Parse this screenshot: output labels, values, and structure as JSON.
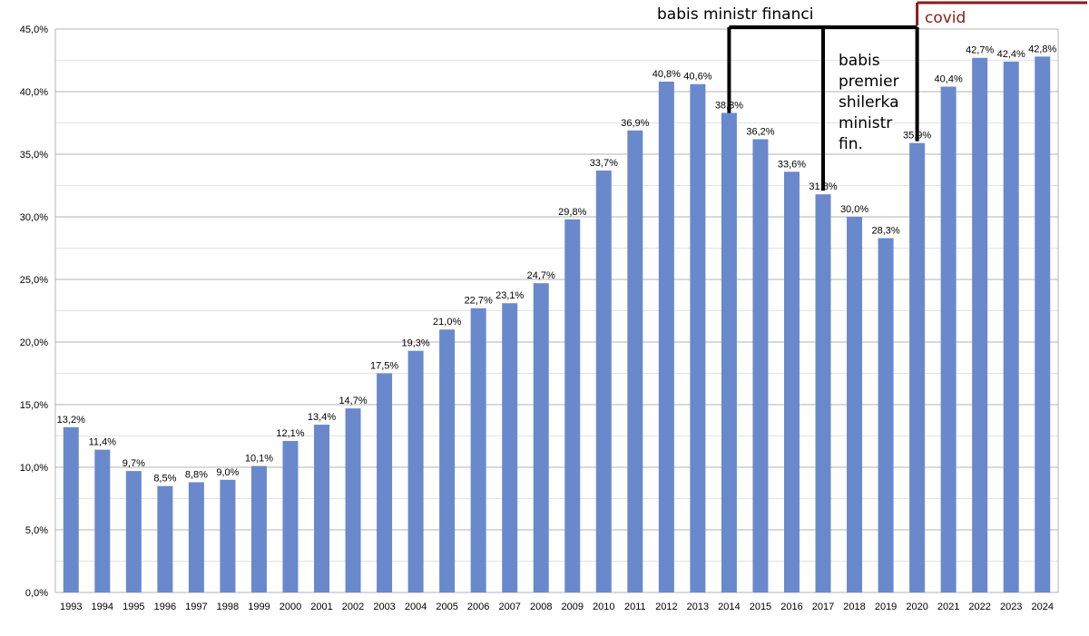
{
  "chart_data": {
    "type": "bar",
    "title": "",
    "xlabel": "",
    "ylabel": "",
    "ylim": [
      0,
      45
    ],
    "grid": true,
    "categories": [
      "1993",
      "1994",
      "1995",
      "1996",
      "1997",
      "1998",
      "1999",
      "2000",
      "2001",
      "2002",
      "2003",
      "2004",
      "2005",
      "2006",
      "2007",
      "2008",
      "2009",
      "2010",
      "2011",
      "2012",
      "2013",
      "2014",
      "2015",
      "2016",
      "2017",
      "2018",
      "2019",
      "2020",
      "2021",
      "2022",
      "2023",
      "2024"
    ],
    "values": [
      13.2,
      11.4,
      9.7,
      8.5,
      8.8,
      9.0,
      10.1,
      12.1,
      13.4,
      14.7,
      17.5,
      19.3,
      21.0,
      22.7,
      23.1,
      24.7,
      29.8,
      33.7,
      36.9,
      40.8,
      40.6,
      38.3,
      36.2,
      33.6,
      31.8,
      30.0,
      28.3,
      35.9,
      40.4,
      42.7,
      42.4,
      42.8
    ],
    "value_labels": [
      "13,2%",
      "11,4%",
      "9,7%",
      "8,5%",
      "8,8%",
      "9,0%",
      "10,1%",
      "12,1%",
      "13,4%",
      "14,7%",
      "17,5%",
      "19,3%",
      "21,0%",
      "22,7%",
      "23,1%",
      "24,7%",
      "29,8%",
      "33,7%",
      "36,9%",
      "40,8%",
      "40,6%",
      "38,3%",
      "36,2%",
      "33,6%",
      "31,8%",
      "30,0%",
      "28,3%",
      "35,9%",
      "40,4%",
      "42,7%",
      "42,4%",
      "42,8%"
    ],
    "y_ticks": [
      0,
      5,
      10,
      15,
      20,
      25,
      30,
      35,
      40,
      45
    ],
    "y_tick_labels": [
      "0,0%",
      "5,0%",
      "10,0%",
      "15,0%",
      "20,0%",
      "25,0%",
      "30,0%",
      "35,0%",
      "40,0%",
      "45,0%"
    ],
    "bar_color": "#6a89cc",
    "annotations": {
      "financi": {
        "text": "babis ministr financi",
        "from": "2014",
        "to": "2020"
      },
      "premier": {
        "lines": [
          "babis",
          "premier",
          "shilerka",
          "ministr",
          "fin."
        ],
        "at": "2017"
      },
      "covid": {
        "text": "covid",
        "from": "2020",
        "color": "#8b1a1a"
      }
    }
  }
}
